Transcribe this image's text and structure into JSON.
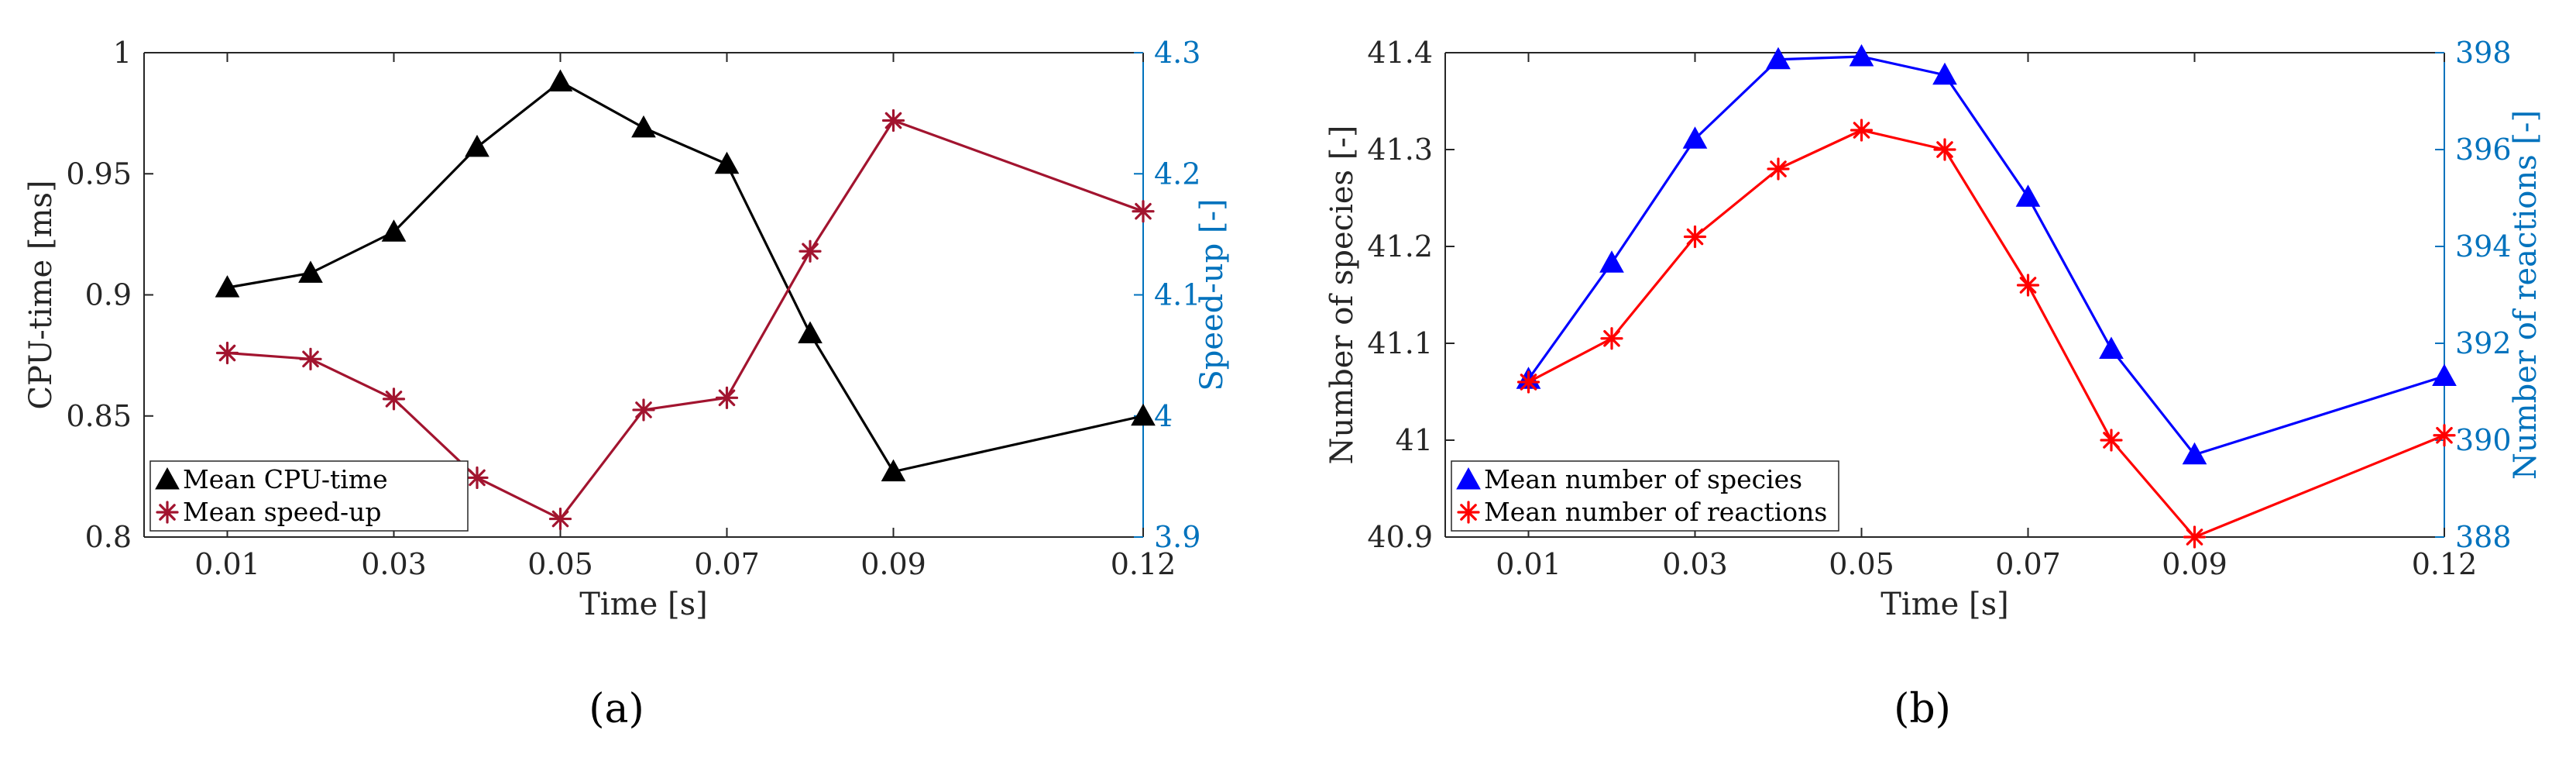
{
  "chart_data": [
    {
      "type": "line",
      "panel_label": "(a)",
      "x": [
        0.01,
        0.02,
        0.03,
        0.04,
        0.05,
        0.06,
        0.07,
        0.08,
        0.09,
        0.12
      ],
      "xlabel": "Time [s]",
      "xticks": [
        "0.01",
        "0.03",
        "0.05",
        "0.07",
        "0.09",
        "0.12"
      ],
      "xtick_values": [
        0.01,
        0.03,
        0.05,
        0.07,
        0.09,
        0.12
      ],
      "xlim": [
        0,
        0.12
      ],
      "left_axis": {
        "label": "CPU-time [ms]",
        "ylim": [
          0.8,
          1.0
        ],
        "ticks": [
          "0.8",
          "0.85",
          "0.9",
          "0.95",
          "1"
        ],
        "tick_values": [
          0.8,
          0.85,
          0.9,
          0.95,
          1.0
        ],
        "color": "#000000"
      },
      "right_axis": {
        "label": "Speed-up [-]",
        "ylim": [
          3.9,
          4.3
        ],
        "ticks": [
          "3.9",
          "4",
          "4.1",
          "4.2",
          "4.3"
        ],
        "tick_values": [
          3.9,
          4.0,
          4.1,
          4.2,
          4.3
        ],
        "color": "#0072BD"
      },
      "series": [
        {
          "name": "Mean CPU-time",
          "axis": "left",
          "marker": "triangle",
          "color": "#000000",
          "values": [
            0.903,
            0.909,
            0.926,
            0.961,
            0.988,
            0.969,
            0.954,
            0.884,
            0.827,
            0.85
          ]
        },
        {
          "name": "Mean speed-up",
          "axis": "right",
          "marker": "asterisk",
          "color": "#A2142F",
          "values": [
            4.052,
            4.047,
            4.014,
            3.949,
            3.915,
            4.005,
            4.015,
            4.136,
            4.244,
            4.169
          ]
        }
      ],
      "legend": [
        "Mean CPU-time",
        "Mean speed-up"
      ],
      "legend_position": "bottom-left"
    },
    {
      "type": "line",
      "panel_label": "(b)",
      "x": [
        0.01,
        0.02,
        0.03,
        0.04,
        0.05,
        0.06,
        0.07,
        0.08,
        0.09,
        0.12
      ],
      "xlabel": "Time [s]",
      "xticks": [
        "0.01",
        "0.03",
        "0.05",
        "0.07",
        "0.09",
        "0.12"
      ],
      "xtick_values": [
        0.01,
        0.03,
        0.05,
        0.07,
        0.09,
        0.12
      ],
      "xlim": [
        0,
        0.12
      ],
      "left_axis": {
        "label": "Number of species [-]",
        "ylim": [
          40.9,
          41.4
        ],
        "ticks": [
          "40.9",
          "41",
          "41.1",
          "41.2",
          "41.3",
          "41.4"
        ],
        "tick_values": [
          40.9,
          41.0,
          41.1,
          41.2,
          41.3,
          41.4
        ],
        "color": "#000000"
      },
      "right_axis": {
        "label": "Number of reactions [-]",
        "ylim": [
          388,
          398
        ],
        "ticks": [
          "388",
          "390",
          "392",
          "394",
          "396",
          "398"
        ],
        "tick_values": [
          388,
          390,
          392,
          394,
          396,
          398
        ],
        "color": "#0072BD"
      },
      "series": [
        {
          "name": "Mean number of species",
          "axis": "left",
          "marker": "triangle",
          "color": "#0000FF",
          "values": [
            41.063,
            41.183,
            41.311,
            41.393,
            41.396,
            41.377,
            41.251,
            41.094,
            40.985,
            41.066
          ]
        },
        {
          "name": "Mean number of reactions",
          "axis": "right",
          "marker": "asterisk",
          "color": "#FF0000",
          "values": [
            391.2,
            392.1,
            394.2,
            395.6,
            396.4,
            396.0,
            393.2,
            390.0,
            388.0,
            390.1
          ]
        }
      ],
      "legend": [
        "Mean number of species",
        "Mean number of reactions"
      ],
      "legend_position": "bottom-left"
    }
  ]
}
